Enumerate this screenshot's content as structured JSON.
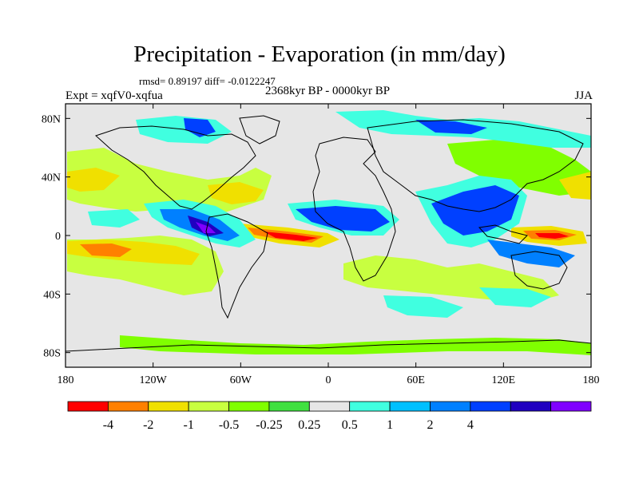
{
  "title": "Precipitation - Evaporation (in mm/day)",
  "stats_text": "rmsd= 0.89197  diff= -0.0122247",
  "experiment_text": "Expt = xqfV0-xqfua",
  "period_text": "2368kyr BP - 0000kyr BP",
  "season": "JJA",
  "axes": {
    "lon_range": [
      -180,
      180
    ],
    "lat_range": [
      -90,
      90
    ],
    "lon_ticks": [
      {
        "value": -180,
        "label": "180"
      },
      {
        "value": -120,
        "label": "120W"
      },
      {
        "value": -60,
        "label": "60W"
      },
      {
        "value": 0,
        "label": "0"
      },
      {
        "value": 60,
        "label": "60E"
      },
      {
        "value": 120,
        "label": "120E"
      },
      {
        "value": 180,
        "label": "180"
      }
    ],
    "lat_ticks": [
      {
        "value": 80,
        "label": "80N"
      },
      {
        "value": 40,
        "label": "40N"
      },
      {
        "value": 0,
        "label": "0"
      },
      {
        "value": -40,
        "label": "40S"
      },
      {
        "value": -80,
        "label": "80S"
      }
    ]
  },
  "colorbar": {
    "colors": [
      "#ff0000",
      "#ff8000",
      "#f0e000",
      "#c8ff40",
      "#80ff00",
      "#40e040",
      "#e6e6e6",
      "#40ffe0",
      "#00c0ff",
      "#0080ff",
      "#0040ff",
      "#2000c0",
      "#8000ff"
    ],
    "labels": [
      "-4",
      "-2",
      "-1",
      "-0.5",
      "-0.25",
      "0.25",
      "0.5",
      "1",
      "2",
      "4"
    ]
  }
}
